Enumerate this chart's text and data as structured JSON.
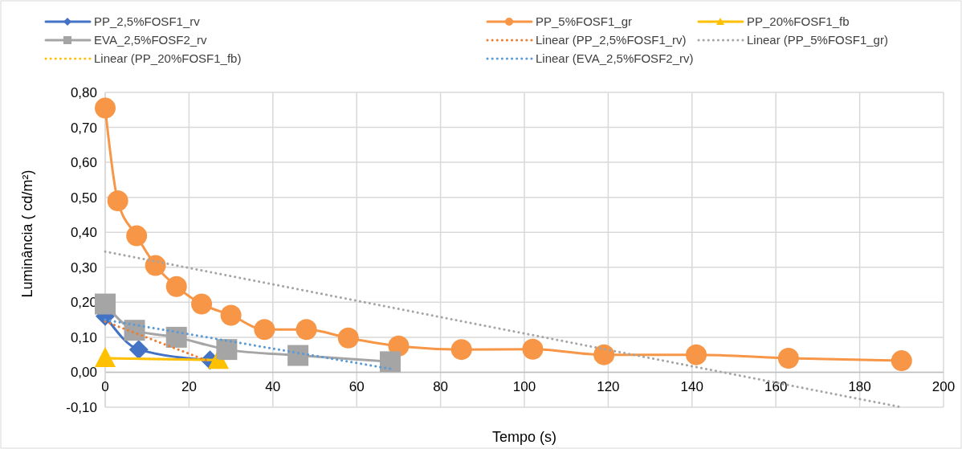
{
  "chart_data": {
    "type": "line",
    "xlabel": "Tempo (s)",
    "ylabel": "Luminância ( cd/m²)",
    "xlim": [
      0,
      200
    ],
    "xticks": [
      0,
      20,
      40,
      60,
      80,
      100,
      120,
      140,
      160,
      180,
      200
    ],
    "ylim": [
      -0.1,
      0.8
    ],
    "yticks": [
      {
        "value": -0.1,
        "label": "-0,10"
      },
      {
        "value": 0,
        "label": "0,00"
      },
      {
        "value": 0.1,
        "label": "0,10"
      },
      {
        "value": 0.2,
        "label": "0,20"
      },
      {
        "value": 0.3,
        "label": "0,30"
      },
      {
        "value": 0.4,
        "label": "0,40"
      },
      {
        "value": 0.5,
        "label": "0,50"
      },
      {
        "value": 0.6,
        "label": "0,60"
      },
      {
        "value": 0.7,
        "label": "0,70"
      },
      {
        "value": 0.8,
        "label": "0,80"
      }
    ],
    "grid": true,
    "legend": "top",
    "series": [
      {
        "name": "PP_2,5%FOSF1_rv",
        "color": "#4472c4",
        "marker": "diamond",
        "line_style": "solid",
        "x": [
          0,
          8,
          25
        ],
        "values": [
          0.16,
          0.065,
          0.035
        ]
      },
      {
        "name": "PP_5%FOSF1_gr",
        "color": "#f79646",
        "marker": "circle",
        "line_style": "solid",
        "x": [
          0,
          3,
          7.5,
          12,
          17,
          23,
          30,
          38,
          48,
          58,
          70,
          85,
          102,
          119,
          141,
          163,
          190
        ],
        "values": [
          0.755,
          0.49,
          0.39,
          0.305,
          0.245,
          0.195,
          0.163,
          0.122,
          0.122,
          0.098,
          0.075,
          0.065,
          0.066,
          0.05,
          0.05,
          0.04,
          0.033
        ]
      },
      {
        "name": "PP_20%FOSF1_fb",
        "color": "#ffc000",
        "marker": "triangle",
        "line_style": "solid",
        "x": [
          0,
          27
        ],
        "values": [
          0.04,
          0.035
        ]
      },
      {
        "name": "EVA_2,5%FOSF2_rv",
        "color": "#a5a5a5",
        "marker": "square",
        "line_style": "solid",
        "x": [
          0,
          7,
          17,
          29,
          46,
          68
        ],
        "values": [
          0.195,
          0.12,
          0.1,
          0.065,
          0.048,
          0.03
        ]
      },
      {
        "name": "Linear (PP_2,5%FOSF1_rv)",
        "color": "#ed7d31",
        "marker": "none",
        "line_style": "dotted",
        "x": [
          0,
          25
        ],
        "values": [
          0.145,
          0.03
        ]
      },
      {
        "name": "Linear (PP_5%FOSF1_gr)",
        "color": "#a5a5a5",
        "marker": "none",
        "line_style": "dotted",
        "x": [
          0,
          190
        ],
        "values": [
          0.345,
          -0.1
        ]
      },
      {
        "name": "Linear (PP_20%FOSF1_fb)",
        "color": "#ffc000",
        "marker": "none",
        "line_style": "dotted",
        "x": [
          0,
          27
        ],
        "values": [
          0.04,
          0.035
        ]
      },
      {
        "name": "Linear (EVA_2,5%FOSF2_rv)",
        "color": "#5b9bd5",
        "marker": "none",
        "line_style": "dotted",
        "x": [
          0,
          68
        ],
        "values": [
          0.15,
          0.01
        ]
      }
    ]
  }
}
